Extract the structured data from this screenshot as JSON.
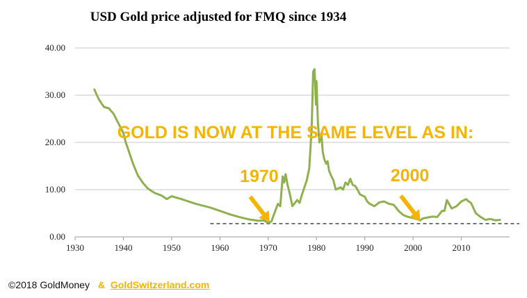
{
  "chart_data": {
    "type": "line",
    "title": "USD Gold price adjusted for FMQ since 1934",
    "xlabel": "",
    "ylabel": "",
    "xlim": [
      1930,
      2020
    ],
    "ylim": [
      0,
      40
    ],
    "x_ticks": [
      "1930",
      "1940",
      "1950",
      "1960",
      "1970",
      "1980",
      "1990",
      "2000",
      "2010"
    ],
    "y_ticks": [
      "0.00",
      "10.00",
      "20.00",
      "30.00",
      "40.00"
    ],
    "grid": "horizontal",
    "series_color": "#8fb04e",
    "reference_line": 2.8,
    "x": [
      1934,
      1934.5,
      1935,
      1935.5,
      1936,
      1937,
      1938,
      1938.5,
      1939,
      1940,
      1940.5,
      1941,
      1942,
      1943,
      1944,
      1945,
      1946,
      1946.5,
      1947,
      1948,
      1949,
      1950,
      1952,
      1955,
      1958,
      1960,
      1962,
      1964,
      1966,
      1968,
      1969,
      1970,
      1970.7,
      1971,
      1972,
      1972.5,
      1973,
      1973.3,
      1973.6,
      1974,
      1974.5,
      1975,
      1976,
      1976.5,
      1977,
      1978,
      1978.5,
      1979,
      1979.3,
      1979.6,
      1979.9,
      1980,
      1980.3,
      1980.6,
      1981,
      1981.3,
      1981.6,
      1982,
      1982.3,
      1982.6,
      1983,
      1983.5,
      1984,
      1985,
      1985.5,
      1986,
      1986.5,
      1987,
      1987.5,
      1988,
      1988.5,
      1989,
      1990,
      1990.5,
      1991,
      1992,
      1993,
      1994,
      1995,
      1996,
      1997,
      1998,
      1999,
      2000,
      2001,
      2001.5,
      2002,
      2003,
      2004,
      2005,
      2006,
      2006.5,
      2007,
      2008,
      2009,
      2010,
      2011,
      2011.5,
      2012,
      2013,
      2014,
      2015,
      2016,
      2017,
      2018
    ],
    "values": [
      31.2,
      30.0,
      29.0,
      28.2,
      27.5,
      27.2,
      26.0,
      25.0,
      24.0,
      22.0,
      20.0,
      18.5,
      15.5,
      13.0,
      11.5,
      10.3,
      9.6,
      9.3,
      9.1,
      8.7,
      8.0,
      8.6,
      8.0,
      7.0,
      6.2,
      5.5,
      4.8,
      4.2,
      3.7,
      3.4,
      3.5,
      3.0,
      3.3,
      4.2,
      7.0,
      6.5,
      12.8,
      11.5,
      13.3,
      11.0,
      9.0,
      6.5,
      7.8,
      7.2,
      9.0,
      12.0,
      14.5,
      23.0,
      35.0,
      35.5,
      28.0,
      33.0,
      24.0,
      20.0,
      22.0,
      18.0,
      16.5,
      15.5,
      16.0,
      14.0,
      13.0,
      12.0,
      10.0,
      10.5,
      10.0,
      11.5,
      11.0,
      12.3,
      11.0,
      10.8,
      10.0,
      9.0,
      8.5,
      7.5,
      7.0,
      6.5,
      7.3,
      7.5,
      7.0,
      6.8,
      5.5,
      4.6,
      4.2,
      4.0,
      3.7,
      3.5,
      3.9,
      4.1,
      4.3,
      4.2,
      5.5,
      5.5,
      7.8,
      6.0,
      6.5,
      7.5,
      8.0,
      7.5,
      7.2,
      5.0,
      4.2,
      3.6,
      3.8,
      3.5,
      3.6
    ]
  },
  "banner_text": "GOLD IS NOW AT THE SAME LEVEL AS IN:",
  "callouts": [
    {
      "label": "1970",
      "target_x": 1970.3,
      "target_y": 3.2
    },
    {
      "label": "2000",
      "target_x": 2001.5,
      "target_y": 3.4
    }
  ],
  "accent_color": "#f5b400",
  "footer": {
    "copyright": "©2018 GoldMoney",
    "ampersand": "&",
    "link": "GoldSwitzerland.com"
  }
}
